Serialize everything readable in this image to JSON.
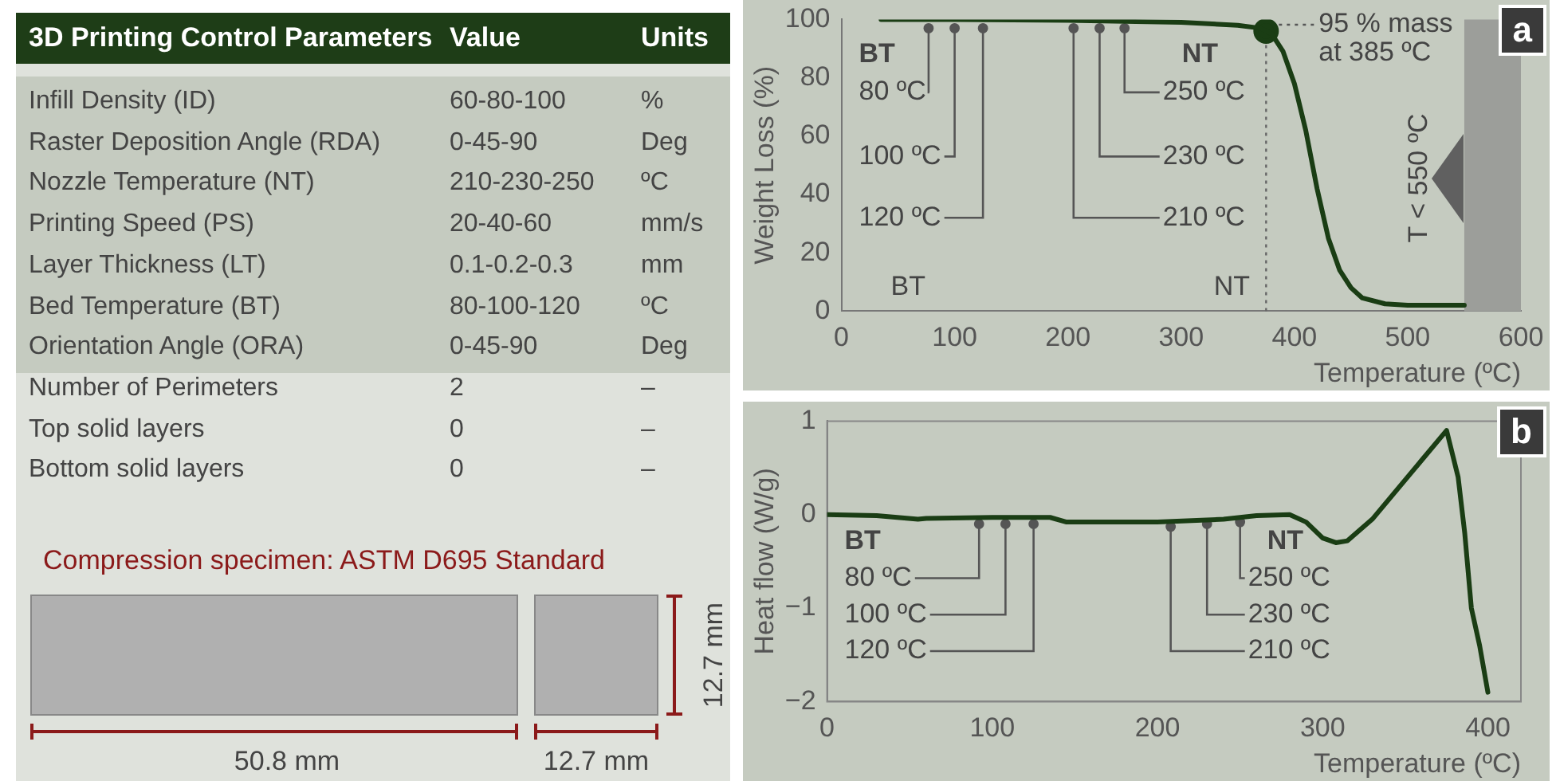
{
  "chart_data": [
    {
      "type": "other",
      "title": "3D Printing Control Parameters",
      "annotations": [
        "Value",
        "Units",
        "Infill Density (ID)",
        "60-80-100",
        "%",
        "Raster Deposition Angle (RDA)",
        "0-45-90",
        "Deg",
        "Nozzle Temperature (NT)",
        "210-230-250",
        "ºC",
        "Printing Speed (PS)",
        "20-40-60",
        "mm/s",
        "Layer Thickness (LT)",
        "0.1-0.2-0.3",
        "mm",
        "Bed Temperature (BT)",
        "80-100-120",
        "ºC",
        "Orientation Angle (ORA)",
        "0-45-90",
        "Deg",
        "Number of Perimeters",
        "2",
        "–",
        "Top solid layers",
        "0",
        "–",
        "Bottom solid layers",
        "0",
        "–",
        "Compression specimen: ASTM D695 Standard",
        "50.8 mm",
        "12.7 mm",
        "12.7 mm"
      ]
    },
    {
      "type": "line",
      "title": "a",
      "xlabel": "Temperature (ºC)",
      "ylabel": "Weight Loss (%)",
      "xlim": [
        0,
        600
      ],
      "ylim": [
        0,
        100
      ],
      "xticks": [
        0,
        100,
        200,
        300,
        400,
        500,
        600
      ],
      "yticks": [
        0,
        20,
        40,
        60,
        80,
        100
      ],
      "series": [
        {
          "type": "line",
          "color": "#1a3d14",
          "marker": "none",
          "x": [
            35,
            100,
            200,
            300,
            350,
            370,
            380,
            390,
            400,
            410,
            420,
            430,
            440,
            450,
            460,
            480,
            500,
            550
          ],
          "values": [
            100,
            100,
            99.7,
            99,
            98,
            97,
            95,
            89,
            78,
            62,
            42,
            25,
            14,
            8,
            4.5,
            2.5,
            2,
            2
          ]
        },
        {
          "type": "scatter",
          "color": "#1a3d14",
          "marker": "circle",
          "x": [
            375
          ],
          "values": [
            96
          ]
        }
      ],
      "ref_lines": [
        {
          "axis": "x",
          "value": 375,
          "line_style": "dotted",
          "color": "#666666"
        }
      ],
      "bands": [
        {
          "axis": "x",
          "from": 550,
          "to": 600,
          "label": "T < 550 ºC",
          "color": "#9c9e9a"
        }
      ],
      "annotations": [
        {
          "text": "80 ºC",
          "x": 77,
          "y": 97
        },
        {
          "text": "100 ºC",
          "x": 100,
          "y": 97
        },
        {
          "text": "120 ºC",
          "x": 125,
          "y": 97
        },
        {
          "text": "210 ºC",
          "x": 205,
          "y": 97
        },
        {
          "text": "230 ºC",
          "x": 228,
          "y": 97
        },
        {
          "text": "250 ºC",
          "x": 250,
          "y": 97
        },
        {
          "text": "95 % mass at 385 ºC",
          "x": 375,
          "y": 96
        },
        "BT",
        "NT",
        "BT",
        "NT"
      ]
    },
    {
      "type": "line",
      "title": "b",
      "xlabel": "Temperature (ºC)",
      "ylabel": "Heat flow (W/g)",
      "xlim": [
        0,
        420
      ],
      "ylim": [
        -2,
        1
      ],
      "xticks": [
        0,
        100,
        200,
        300,
        400
      ],
      "yticks": [
        {
          "value": -2,
          "label": "−2"
        },
        {
          "value": -1,
          "label": "−1"
        },
        0,
        1
      ],
      "series": [
        {
          "type": "line",
          "color": "#1a3d14",
          "marker": "none",
          "x": [
            0,
            30,
            55,
            60,
            100,
            135,
            145,
            200,
            240,
            260,
            280,
            290,
            300,
            308,
            315,
            330,
            375,
            382,
            386,
            390,
            395,
            400
          ],
          "values": [
            0,
            -0.01,
            -0.05,
            -0.04,
            -0.03,
            -0.03,
            -0.08,
            -0.08,
            -0.05,
            -0.01,
            0,
            -0.08,
            -0.25,
            -0.3,
            -0.28,
            -0.05,
            0.9,
            0.4,
            -0.2,
            -1.0,
            -1.4,
            -1.9
          ]
        }
      ],
      "annotations": [
        {
          "text": "80 ºC",
          "x": 92,
          "y": -0.1
        },
        {
          "text": "100 ºC",
          "x": 108,
          "y": -0.1
        },
        {
          "text": "120 ºC",
          "x": 125,
          "y": -0.1
        },
        {
          "text": "210 ºC",
          "x": 208,
          "y": -0.13
        },
        {
          "text": "230 ºC",
          "x": 230,
          "y": -0.1
        },
        {
          "text": "250 ºC",
          "x": 250,
          "y": -0.08
        },
        "BT",
        "NT"
      ]
    }
  ]
}
